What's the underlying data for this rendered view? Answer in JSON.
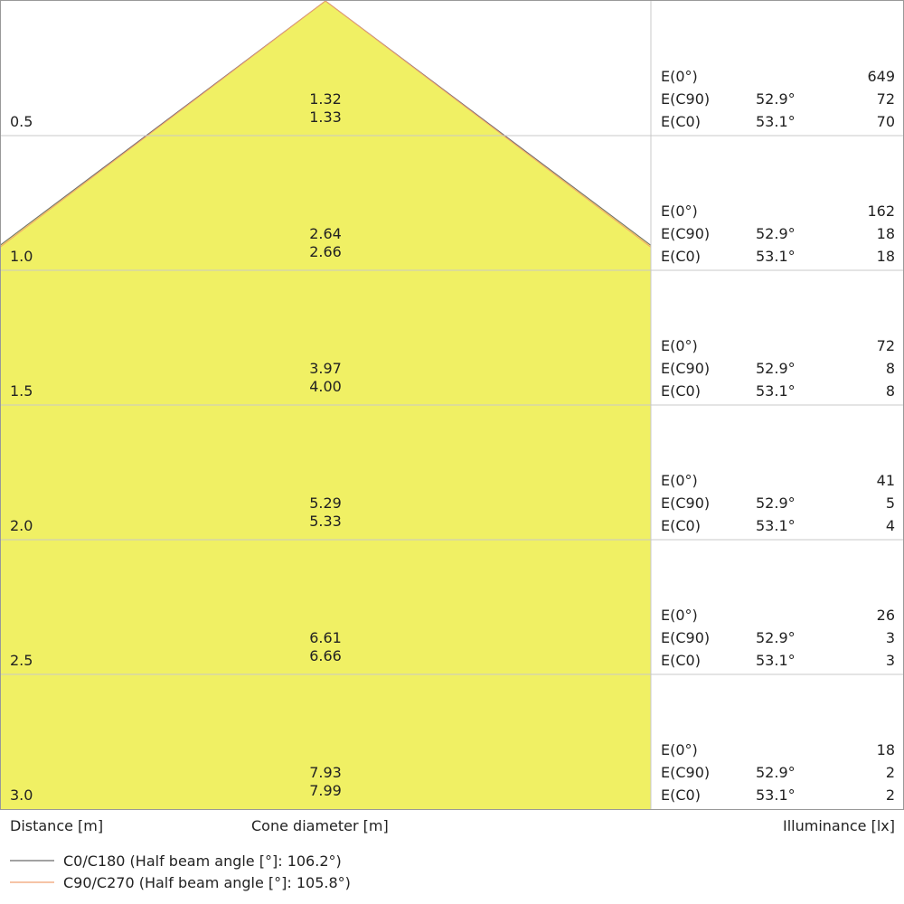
{
  "chart_data": {
    "type": "cone-diagram",
    "distance_label": "Distance [m]",
    "diameter_label": "Cone diameter [m]",
    "illuminance_label": "Illuminance [lx]",
    "colors": {
      "fill": "#f0f064",
      "c0_line": "#6b6b6b",
      "c90_line": "#f0a070",
      "grid": "#c8c8c8"
    },
    "legend": [
      {
        "label": "C0/C180 (Half beam angle [°]: 106.2°)",
        "color": "#6b6b6b"
      },
      {
        "label": "C90/C270 (Half beam angle [°]: 105.8°)",
        "color": "#f0a070"
      }
    ],
    "row_labels": {
      "e0": "E(0°)",
      "ec90": "E(C90)",
      "ec0": "E(C0)",
      "angle_c90": "52.9°",
      "angle_c0": "53.1°"
    },
    "rows": [
      {
        "distance": "0.5",
        "diameter_c90": "1.32",
        "diameter_c0": "1.33",
        "e0": "649",
        "ec90": "72",
        "ec0": "70"
      },
      {
        "distance": "1.0",
        "diameter_c90": "2.64",
        "diameter_c0": "2.66",
        "e0": "162",
        "ec90": "18",
        "ec0": "18"
      },
      {
        "distance": "1.5",
        "diameter_c90": "3.97",
        "diameter_c0": "4.00",
        "e0": "72",
        "ec90": "8",
        "ec0": "8"
      },
      {
        "distance": "2.0",
        "diameter_c90": "5.29",
        "diameter_c0": "5.33",
        "e0": "41",
        "ec90": "5",
        "ec0": "4"
      },
      {
        "distance": "2.5",
        "diameter_c90": "6.61",
        "diameter_c0": "6.66",
        "e0": "26",
        "ec90": "3",
        "ec0": "3"
      },
      {
        "distance": "3.0",
        "diameter_c90": "7.93",
        "diameter_c0": "7.99",
        "e0": "18",
        "ec90": "2",
        "ec0": "2"
      }
    ]
  }
}
